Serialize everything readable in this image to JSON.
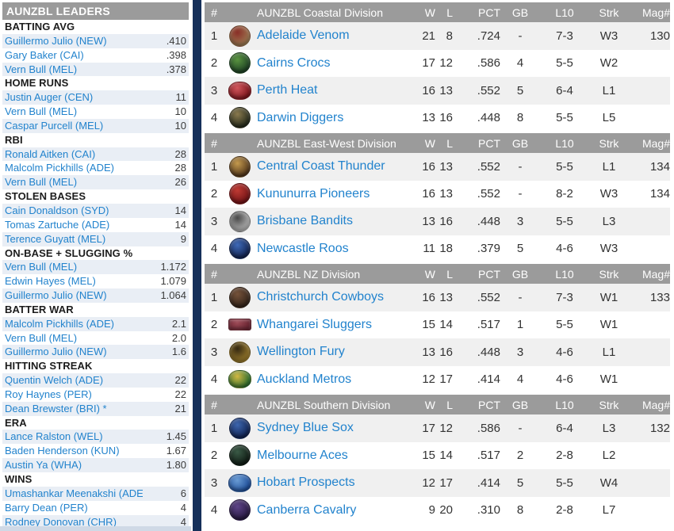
{
  "colors": {
    "header_bar": "#9b9b9b",
    "link_blue": "#2283cd",
    "row_stripe_main": "#f0f0f0",
    "row_stripe_sidebar": "#e9eef5",
    "divider_navy": "#16305a",
    "sidebar_bottom_band": "#cfd9e6",
    "text_dark": "#333333"
  },
  "sidebar": {
    "title": "AUNZBL LEADERS",
    "groups": [
      {
        "category": "BATTING AVG",
        "leaders": [
          {
            "name": "Guillermo Julio (NEW)",
            "value": ".410"
          },
          {
            "name": "Gary Baker (CAI)",
            "value": ".398"
          },
          {
            "name": "Vern Bull (MEL)",
            "value": ".378"
          }
        ]
      },
      {
        "category": "HOME RUNS",
        "leaders": [
          {
            "name": "Justin Auger (CEN)",
            "value": "11"
          },
          {
            "name": "Vern Bull (MEL)",
            "value": "10"
          },
          {
            "name": "Caspar Purcell (MEL)",
            "value": "10"
          }
        ]
      },
      {
        "category": "RBI",
        "leaders": [
          {
            "name": "Ronald Aitken (CAI)",
            "value": "28"
          },
          {
            "name": "Malcolm Pickhills (ADE)",
            "value": "28"
          },
          {
            "name": "Vern Bull (MEL)",
            "value": "26"
          }
        ]
      },
      {
        "category": "STOLEN BASES",
        "leaders": [
          {
            "name": "Cain Donaldson (SYD)",
            "value": "14"
          },
          {
            "name": "Tomas Zartuche (ADE)",
            "value": "14"
          },
          {
            "name": "Terence Guyatt (MEL)",
            "value": "9"
          }
        ]
      },
      {
        "category": "ON-BASE + SLUGGING %",
        "leaders": [
          {
            "name": "Vern Bull (MEL)",
            "value": "1.172"
          },
          {
            "name": "Edwin Hayes (MEL)",
            "value": "1.079"
          },
          {
            "name": "Guillermo Julio (NEW)",
            "value": "1.064"
          }
        ]
      },
      {
        "category": "BATTER WAR",
        "leaders": [
          {
            "name": "Malcolm Pickhills (ADE)",
            "value": "2.1"
          },
          {
            "name": "Vern Bull (MEL)",
            "value": "2.0"
          },
          {
            "name": "Guillermo Julio (NEW)",
            "value": "1.6"
          }
        ]
      },
      {
        "category": "HITTING STREAK",
        "leaders": [
          {
            "name": "Quentin Welch (ADE)",
            "value": "22"
          },
          {
            "name": "Roy Haynes (PER)",
            "value": "22"
          },
          {
            "name": "Dean Brewster (BRI) *",
            "value": "21"
          }
        ]
      },
      {
        "category": "ERA",
        "leaders": [
          {
            "name": "Lance Ralston (WEL)",
            "value": "1.45"
          },
          {
            "name": "Baden Henderson (KUN)",
            "value": "1.67"
          },
          {
            "name": "Austin Ya (WHA)",
            "value": "1.80"
          }
        ]
      },
      {
        "category": "WINS",
        "leaders": [
          {
            "name": "Umashankar Meenakshi (ADE)",
            "value": "6"
          },
          {
            "name": "Barry Dean (PER)",
            "value": "4"
          },
          {
            "name": "Rodney Donovan (CHR)",
            "value": "4"
          }
        ]
      }
    ]
  },
  "standings": {
    "columns": {
      "rank": "#",
      "w": "W",
      "l": "L",
      "pct": "PCT",
      "gb": "GB",
      "l10": "L10",
      "strk": "Strk",
      "mag": "Mag#"
    },
    "divisions": [
      {
        "title": "AUNZBL Coastal Division",
        "teams": [
          {
            "rank": "1",
            "name": "Adelaide Venom",
            "w": "21",
            "l": "8",
            "pct": ".724",
            "gb": "-",
            "l10": "7-3",
            "strk": "W3",
            "mag": "130",
            "logo": {
              "icon": "adelaide-venom-logo",
              "shape": "circle",
              "edge": "#9c7a52",
              "center": "#8a2f28"
            }
          },
          {
            "rank": "2",
            "name": "Cairns Crocs",
            "w": "17",
            "l": "12",
            "pct": ".586",
            "gb": "4",
            "l10": "5-5",
            "strk": "W2",
            "mag": "",
            "logo": {
              "icon": "cairns-crocs-logo",
              "shape": "circle",
              "edge": "#1d4024",
              "center": "#5a9440"
            }
          },
          {
            "rank": "3",
            "name": "Perth Heat",
            "w": "16",
            "l": "13",
            "pct": ".552",
            "gb": "5",
            "l10": "6-4",
            "strk": "L1",
            "mag": "",
            "logo": {
              "icon": "perth-heat-logo",
              "shape": "blob",
              "edge": "#7e151c",
              "center": "#d0565c"
            }
          },
          {
            "rank": "4",
            "name": "Darwin Diggers",
            "w": "13",
            "l": "16",
            "pct": ".448",
            "gb": "8",
            "l10": "5-5",
            "strk": "L5",
            "mag": "",
            "logo": {
              "icon": "darwin-diggers-logo",
              "shape": "circle",
              "edge": "#23281a",
              "center": "#8a7a4e"
            }
          }
        ]
      },
      {
        "title": "AUNZBL East-West Division",
        "teams": [
          {
            "rank": "1",
            "name": "Central Coast Thunder",
            "w": "16",
            "l": "13",
            "pct": ".552",
            "gb": "-",
            "l10": "5-5",
            "strk": "L1",
            "mag": "134",
            "logo": {
              "icon": "central-coast-thunder-logo",
              "shape": "circle",
              "edge": "#50351a",
              "center": "#c49a4e"
            }
          },
          {
            "rank": "2",
            "name": "Kununurra Pioneers",
            "w": "16",
            "l": "13",
            "pct": ".552",
            "gb": "-",
            "l10": "8-2",
            "strk": "W3",
            "mag": "134",
            "logo": {
              "icon": "kununurra-pioneers-logo",
              "shape": "circle",
              "edge": "#701316",
              "center": "#bf3a33"
            }
          },
          {
            "rank": "3",
            "name": "Brisbane Bandits",
            "w": "13",
            "l": "16",
            "pct": ".448",
            "gb": "3",
            "l10": "5-5",
            "strk": "L3",
            "mag": "",
            "logo": {
              "icon": "brisbane-bandits-logo",
              "shape": "circle",
              "edge": "#b8b8b8",
              "center": "#4a4a4a"
            }
          },
          {
            "rank": "4",
            "name": "Newcastle Roos",
            "w": "11",
            "l": "18",
            "pct": ".379",
            "gb": "5",
            "l10": "4-6",
            "strk": "W3",
            "mag": "",
            "logo": {
              "icon": "newcastle-roos-logo",
              "shape": "circle",
              "edge": "#12224e",
              "center": "#3f6ab8"
            }
          }
        ]
      },
      {
        "title": "AUNZBL NZ Division",
        "teams": [
          {
            "rank": "1",
            "name": "Christchurch Cowboys",
            "w": "16",
            "l": "13",
            "pct": ".552",
            "gb": "-",
            "l10": "7-3",
            "strk": "W1",
            "mag": "133",
            "logo": {
              "icon": "christchurch-cowboys-logo",
              "shape": "circle",
              "edge": "#33241a",
              "center": "#75523a"
            }
          },
          {
            "rank": "2",
            "name": "Whangarei Sluggers",
            "w": "15",
            "l": "14",
            "pct": ".517",
            "gb": "1",
            "l10": "5-5",
            "strk": "W1",
            "mag": "",
            "logo": {
              "icon": "whangarei-sluggers-logo",
              "shape": "banner",
              "edge": "#6f2836",
              "center": "#9c4a56"
            }
          },
          {
            "rank": "3",
            "name": "Wellington Fury",
            "w": "13",
            "l": "16",
            "pct": ".448",
            "gb": "3",
            "l10": "4-6",
            "strk": "L1",
            "mag": "",
            "logo": {
              "icon": "wellington-fury-logo",
              "shape": "circle",
              "edge": "#9b7c2c",
              "center": "#342812"
            }
          },
          {
            "rank": "4",
            "name": "Auckland Metros",
            "w": "12",
            "l": "17",
            "pct": ".414",
            "gb": "4",
            "l10": "4-6",
            "strk": "W1",
            "mag": "",
            "logo": {
              "icon": "auckland-metros-logo",
              "shape": "blob",
              "edge": "#2f6e2c",
              "center": "#d2b844"
            }
          }
        ]
      },
      {
        "title": "AUNZBL Southern Division",
        "teams": [
          {
            "rank": "1",
            "name": "Sydney Blue Sox",
            "w": "17",
            "l": "12",
            "pct": ".586",
            "gb": "-",
            "l10": "6-4",
            "strk": "L3",
            "mag": "132",
            "logo": {
              "icon": "sydney-blue-sox-logo",
              "shape": "circle",
              "edge": "#0f2150",
              "center": "#3d66ae"
            }
          },
          {
            "rank": "2",
            "name": "Melbourne Aces",
            "w": "15",
            "l": "14",
            "pct": ".517",
            "gb": "2",
            "l10": "2-8",
            "strk": "L2",
            "mag": "",
            "logo": {
              "icon": "melbourne-aces-logo",
              "shape": "circle",
              "edge": "#0f1a13",
              "center": "#3a5a46"
            }
          },
          {
            "rank": "3",
            "name": "Hobart Prospects",
            "w": "12",
            "l": "17",
            "pct": ".414",
            "gb": "5",
            "l10": "5-5",
            "strk": "W4",
            "mag": "",
            "logo": {
              "icon": "hobart-prospects-logo",
              "shape": "blob",
              "edge": "#1f4f9a",
              "center": "#6a9cd4"
            }
          },
          {
            "rank": "4",
            "name": "Canberra Cavalry",
            "w": "9",
            "l": "20",
            "pct": ".310",
            "gb": "8",
            "l10": "2-8",
            "strk": "L7",
            "mag": "",
            "logo": {
              "icon": "canberra-cavalry-logo",
              "shape": "circle",
              "edge": "#261840",
              "center": "#5e4488"
            }
          }
        ]
      }
    ]
  }
}
